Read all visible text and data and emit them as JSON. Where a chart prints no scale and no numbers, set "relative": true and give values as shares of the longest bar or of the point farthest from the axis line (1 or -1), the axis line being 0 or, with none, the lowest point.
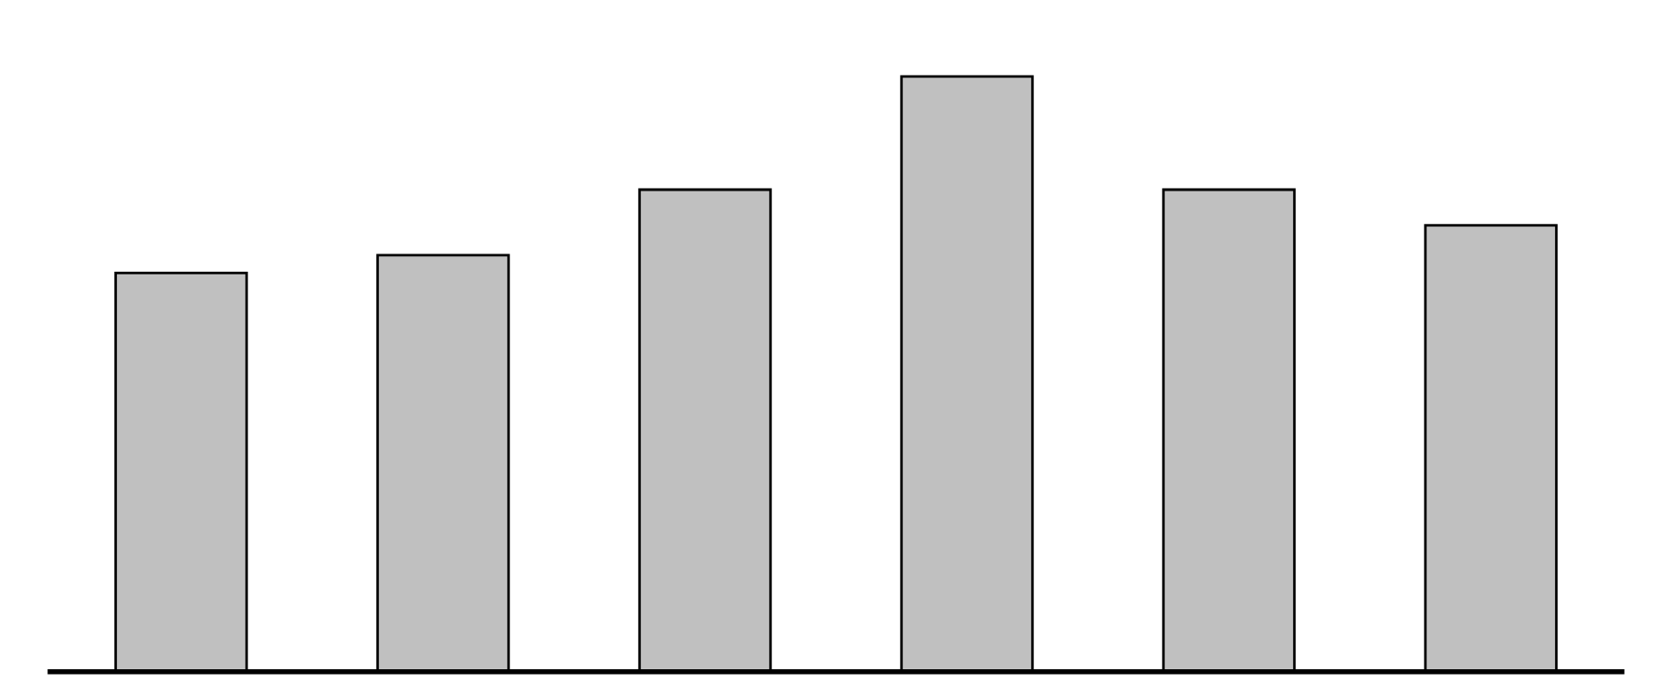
{
  "chart_data": {
    "type": "bar",
    "relative": true,
    "categories": [
      null,
      null,
      null,
      null,
      null,
      null
    ],
    "values": [
      0.67,
      0.7,
      0.81,
      1,
      0.81,
      0.75
    ],
    "color": "#c0c0c0"
  }
}
